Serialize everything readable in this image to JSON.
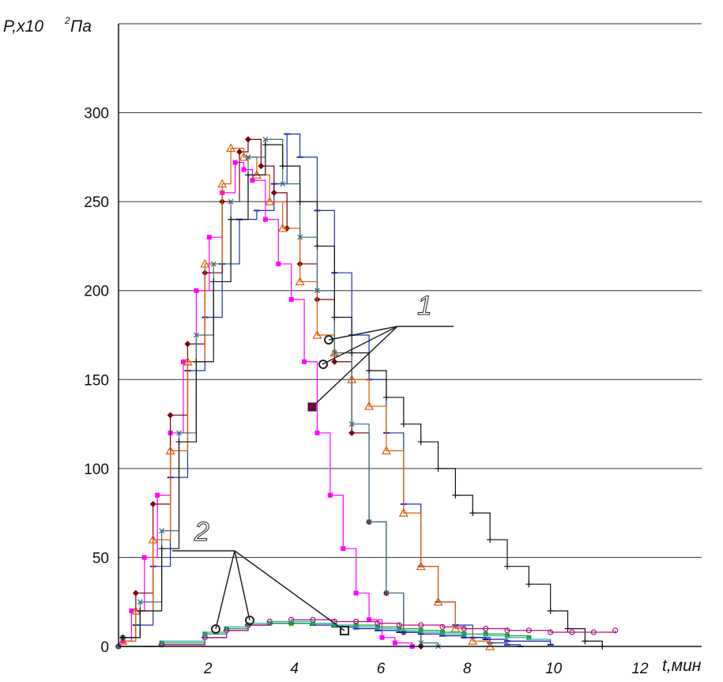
{
  "chart_data": {
    "type": "line",
    "ylabel_prefix": "P,x10",
    "ylabel_exponent": "2",
    "ylabel_unit": "Па",
    "xlabel": "t,мин",
    "xlim": [
      0,
      13.5
    ],
    "ylim": [
      0,
      350
    ],
    "yticks": [
      "0",
      "50",
      "100",
      "150",
      "200",
      "250",
      "300"
    ],
    "xticks": [
      "2",
      "4",
      "6",
      "8",
      "10",
      "12"
    ],
    "grid": "horizontal",
    "callouts": [
      "1",
      "2"
    ],
    "series": [
      {
        "group": "1",
        "color": "#1f2fb0",
        "marker": "dash",
        "x": [
          0.1,
          0.4,
          0.8,
          1.2,
          1.6,
          2.0,
          2.4,
          2.8,
          3.2,
          3.6,
          3.9,
          4.2,
          4.6,
          5.0,
          5.4,
          5.8,
          6.2,
          6.6,
          7.0,
          7.4,
          7.8,
          8.2,
          8.6,
          9.0,
          9.3
        ],
        "y": [
          5,
          12,
          45,
          95,
          155,
          185,
          215,
          240,
          245,
          260,
          288,
          275,
          245,
          210,
          175,
          150,
          120,
          80,
          45,
          25,
          12,
          5,
          2,
          1,
          0
        ]
      },
      {
        "group": "1",
        "color": "#ff00ff",
        "marker": "square",
        "x": [
          0.1,
          0.3,
          0.6,
          0.9,
          1.2,
          1.5,
          1.8,
          2.1,
          2.4,
          2.7,
          2.9,
          3.1,
          3.4,
          3.7,
          4.0,
          4.3,
          4.6,
          4.9,
          5.2,
          5.5,
          5.8,
          6.1,
          6.4,
          6.8
        ],
        "y": [
          3,
          20,
          50,
          85,
          120,
          160,
          200,
          230,
          255,
          272,
          268,
          262,
          240,
          215,
          195,
          160,
          120,
          85,
          55,
          30,
          15,
          5,
          2,
          0
        ]
      },
      {
        "group": "1",
        "color": "#7a0010",
        "marker": "diamond",
        "x": [
          0.1,
          0.4,
          0.8,
          1.2,
          1.6,
          2.0,
          2.4,
          2.8,
          3.0,
          3.3,
          3.6,
          3.9,
          4.2,
          4.6,
          5.0,
          5.4,
          5.8,
          6.2,
          6.6,
          7.0
        ],
        "y": [
          5,
          30,
          80,
          130,
          170,
          210,
          250,
          278,
          285,
          270,
          255,
          235,
          215,
          195,
          160,
          120,
          70,
          30,
          8,
          0
        ]
      },
      {
        "group": "1",
        "color": "#e05a00",
        "marker": "triangle",
        "x": [
          0.1,
          0.4,
          0.8,
          1.2,
          1.6,
          2.0,
          2.4,
          2.6,
          2.9,
          3.2,
          3.5,
          3.8,
          4.2,
          4.6,
          5.0,
          5.4,
          5.8,
          6.2,
          6.6,
          7.0,
          7.4,
          7.8,
          8.2,
          8.6
        ],
        "y": [
          3,
          20,
          60,
          110,
          160,
          215,
          260,
          280,
          275,
          265,
          250,
          235,
          205,
          175,
          165,
          150,
          135,
          110,
          75,
          45,
          25,
          10,
          3,
          0
        ]
      },
      {
        "group": "1",
        "color": "#3a6a7a",
        "marker": "x",
        "x": [
          0.1,
          0.5,
          1.0,
          1.4,
          1.8,
          2.2,
          2.6,
          3.0,
          3.4,
          3.8,
          4.2,
          4.6,
          5.0,
          5.4,
          5.8,
          6.2,
          6.6,
          7.0,
          7.4
        ],
        "y": [
          5,
          25,
          65,
          120,
          175,
          215,
          250,
          275,
          285,
          260,
          230,
          200,
          165,
          125,
          70,
          30,
          8,
          2,
          0
        ]
      },
      {
        "group": "1",
        "color": "#111111",
        "marker": "plus",
        "x": [
          0.1,
          0.5,
          1.0,
          1.4,
          1.8,
          2.2,
          2.6,
          3.0,
          3.4,
          3.8,
          4.2,
          4.6,
          5.0,
          5.4,
          5.8,
          6.2,
          6.6,
          7.0,
          7.4,
          7.8,
          8.2,
          8.6,
          9.0,
          9.5,
          10.0,
          10.4,
          10.8,
          11.2
        ],
        "y": [
          5,
          20,
          55,
          115,
          160,
          205,
          240,
          265,
          282,
          270,
          250,
          225,
          185,
          165,
          155,
          140,
          125,
          115,
          100,
          85,
          75,
          60,
          45,
          35,
          20,
          10,
          3,
          0
        ]
      },
      {
        "group": "2",
        "color": "#0a1aa0",
        "marker": "dash",
        "x": [
          0,
          1,
          2,
          2.5,
          3,
          3.5,
          4,
          4.5,
          5,
          5.5,
          6,
          6.5,
          7,
          7.5,
          8,
          8.5,
          9,
          10
        ],
        "y": [
          0,
          1,
          5,
          9,
          12,
          13,
          13,
          12,
          11,
          10,
          9,
          8,
          7,
          6,
          5,
          4,
          3,
          1
        ]
      },
      {
        "group": "2",
        "color": "#18a020",
        "marker": "square",
        "x": [
          0,
          1,
          2,
          2.5,
          3,
          3.5,
          4,
          4.5,
          5,
          5.5,
          6,
          6.5,
          7,
          7.5,
          8,
          8.5,
          9,
          9.5
        ],
        "y": [
          0,
          2,
          7,
          10,
          12,
          13,
          13,
          13,
          12,
          12,
          11,
          10,
          9,
          8,
          7,
          7,
          6,
          5
        ]
      },
      {
        "group": "2",
        "color": "#b01080",
        "marker": "circle",
        "x": [
          0,
          1,
          2,
          2.5,
          3,
          3.5,
          4,
          4.5,
          5,
          5.5,
          6,
          6.5,
          7,
          7.5,
          8,
          8.5,
          9,
          9.5,
          10,
          10.5,
          11,
          11.5
        ],
        "y": [
          0,
          1,
          5,
          9,
          12,
          14,
          15,
          15,
          14,
          14,
          13,
          12,
          12,
          11,
          10,
          10,
          9,
          9,
          8,
          8,
          8,
          9
        ]
      },
      {
        "group": "2",
        "color": "#20b0c0",
        "marker": "none",
        "x": [
          0,
          1,
          2,
          2.5,
          3,
          3.5,
          4,
          4.5,
          5,
          5.5,
          6,
          6.5,
          7,
          7.5,
          8,
          8.5,
          9,
          9.5,
          10
        ],
        "y": [
          0,
          3,
          8,
          11,
          13,
          14,
          14,
          13,
          12,
          11,
          10,
          9,
          8,
          7,
          7,
          6,
          5,
          4,
          3
        ]
      }
    ]
  }
}
